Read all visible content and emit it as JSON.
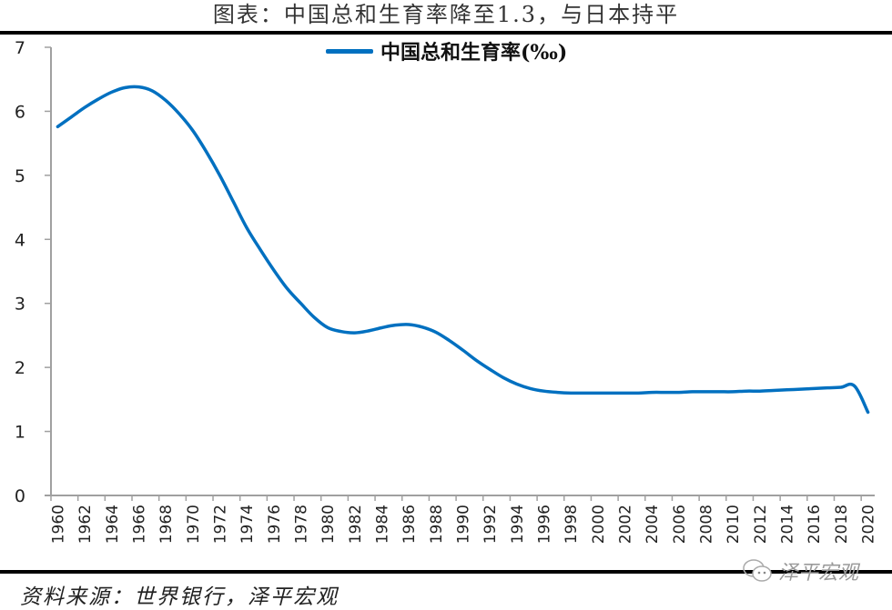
{
  "title": "图表：中国总和生育率降至1.3，与日本持平",
  "source": "资料来源：世界银行，泽平宏观",
  "watermark": "泽平宏观",
  "legend": {
    "label": "中国总和生育率(‰)",
    "color": "#0070C0"
  },
  "colors": {
    "line": "#0070C0",
    "axis": "#A0A0A0",
    "text": "#222222"
  },
  "chart_data": {
    "type": "line",
    "title": "图表：中国总和生育率降至1.3，与日本持平",
    "xlabel": "",
    "ylabel": "",
    "ylim": [
      0,
      7
    ],
    "yticks": [
      0,
      1,
      2,
      3,
      4,
      5,
      6,
      7
    ],
    "grid": false,
    "legend_position": "top",
    "smooth": true,
    "xtick_labels": [
      "1960",
      "1962",
      "1964",
      "1966",
      "1968",
      "1970",
      "1972",
      "1974",
      "1976",
      "1978",
      "1980",
      "1982",
      "1984",
      "1986",
      "1988",
      "1990",
      "1992",
      "1994",
      "1996",
      "1998",
      "2000",
      "2002",
      "2004",
      "2006",
      "2008",
      "2010",
      "2012",
      "2014",
      "2016",
      "2018",
      "2020"
    ],
    "x": [
      1960,
      1961,
      1962,
      1963,
      1964,
      1965,
      1966,
      1967,
      1968,
      1969,
      1970,
      1971,
      1972,
      1973,
      1974,
      1975,
      1976,
      1977,
      1978,
      1979,
      1980,
      1981,
      1982,
      1983,
      1984,
      1985,
      1986,
      1987,
      1988,
      1989,
      1990,
      1991,
      1992,
      1993,
      1994,
      1995,
      1996,
      1997,
      1998,
      1999,
      2000,
      2001,
      2002,
      2003,
      2004,
      2005,
      2006,
      2007,
      2008,
      2009,
      2010,
      2011,
      2012,
      2013,
      2014,
      2015,
      2016,
      2017,
      2018,
      2019,
      2020
    ],
    "series": [
      {
        "name": "中国总和生育率(‰)",
        "values": [
          5.76,
          5.91,
          6.06,
          6.19,
          6.3,
          6.37,
          6.38,
          6.32,
          6.17,
          5.96,
          5.7,
          5.37,
          5.0,
          4.59,
          4.18,
          3.84,
          3.52,
          3.23,
          3.0,
          2.78,
          2.62,
          2.56,
          2.54,
          2.57,
          2.62,
          2.66,
          2.67,
          2.63,
          2.55,
          2.42,
          2.27,
          2.11,
          1.97,
          1.84,
          1.74,
          1.67,
          1.63,
          1.61,
          1.6,
          1.6,
          1.6,
          1.6,
          1.6,
          1.6,
          1.61,
          1.61,
          1.61,
          1.62,
          1.62,
          1.62,
          1.62,
          1.63,
          1.63,
          1.64,
          1.65,
          1.66,
          1.67,
          1.68,
          1.69,
          1.71,
          1.3
        ]
      }
    ]
  }
}
